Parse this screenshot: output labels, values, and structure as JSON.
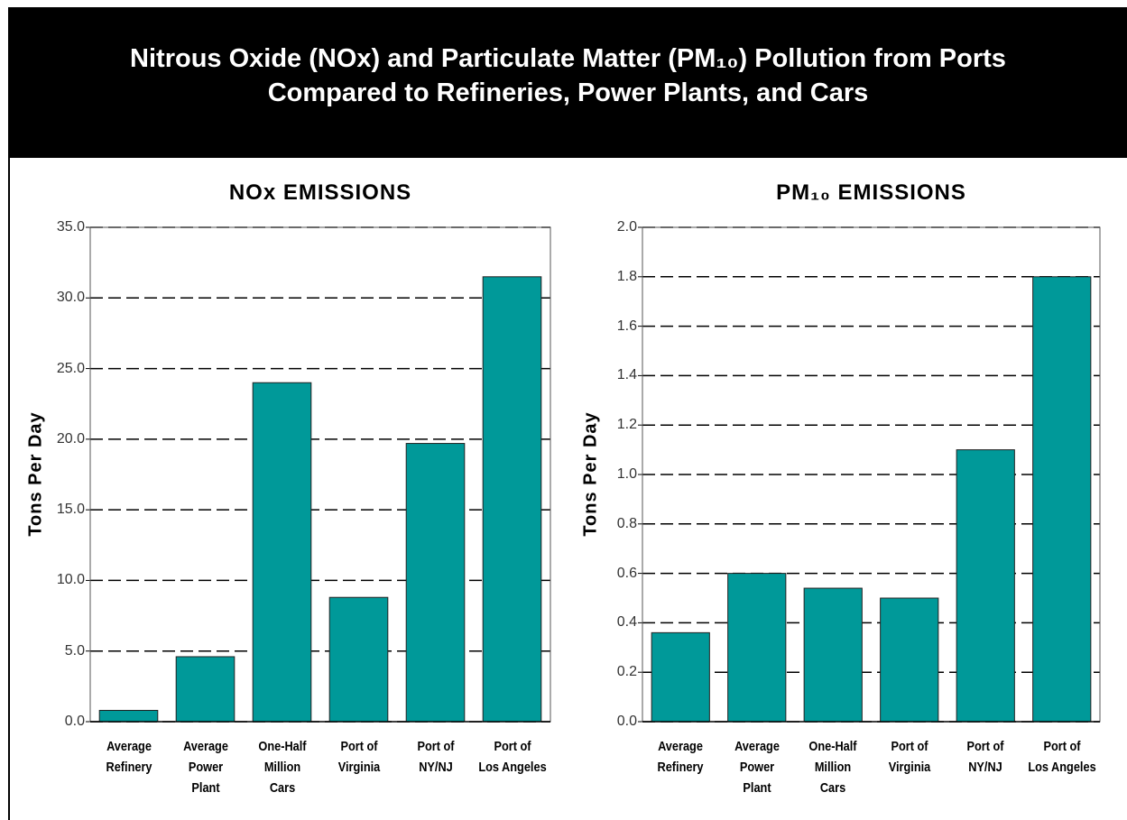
{
  "title": "Nitrous Oxide (NOx) and Particulate Matter (PM₁₀) Pollution from Ports\nCompared to Refineries, Power Plants, and Cars",
  "chart_data": [
    {
      "type": "bar",
      "title": "NOx EMISSIONS",
      "ylabel": "Tons Per Day",
      "categories": [
        "Average\nRefinery",
        "Average\nPower\nPlant",
        "One-Half\nMillion\nCars",
        "Port of\nVirginia",
        "Port of\nNY/NJ",
        "Port of\nLos Angeles"
      ],
      "values": [
        0.8,
        4.6,
        24.0,
        8.8,
        19.7,
        31.5
      ],
      "color": "#009999",
      "ylim": [
        0,
        35
      ],
      "yticks": [
        {
          "value": 0,
          "label": "0.0"
        },
        {
          "value": 5,
          "label": "5.0"
        },
        {
          "value": 10,
          "label": "10.0"
        },
        {
          "value": 15,
          "label": "15.0"
        },
        {
          "value": 20,
          "label": "20.0"
        },
        {
          "value": 25,
          "label": "25.0"
        },
        {
          "value": 30,
          "label": "30.0"
        },
        {
          "value": 35,
          "label": "35.0"
        }
      ],
      "grid": true
    },
    {
      "type": "bar",
      "title": "PM₁₀ EMISSIONS",
      "ylabel": "Tons Per Day",
      "categories": [
        "Average\nRefinery",
        "Average\nPower\nPlant",
        "One-Half\nMillion\nCars",
        "Port of\nVirginia",
        "Port of\nNY/NJ",
        "Port of\nLos Angeles"
      ],
      "values": [
        0.36,
        0.6,
        0.54,
        0.5,
        1.1,
        1.8
      ],
      "color": "#009999",
      "ylim": [
        0,
        2
      ],
      "yticks": [
        {
          "value": 0,
          "label": "0.0"
        },
        {
          "value": 0.2,
          "label": "0.2"
        },
        {
          "value": 0.4,
          "label": "0.4"
        },
        {
          "value": 0.6,
          "label": "0.6"
        },
        {
          "value": 0.8,
          "label": "0.8"
        },
        {
          "value": 1.0,
          "label": "1.0"
        },
        {
          "value": 1.2,
          "label": "1.2"
        },
        {
          "value": 1.4,
          "label": "1.4"
        },
        {
          "value": 1.6,
          "label": "1.6"
        },
        {
          "value": 1.8,
          "label": "1.8"
        },
        {
          "value": 2.0,
          "label": "2.0"
        }
      ],
      "grid": true
    }
  ]
}
